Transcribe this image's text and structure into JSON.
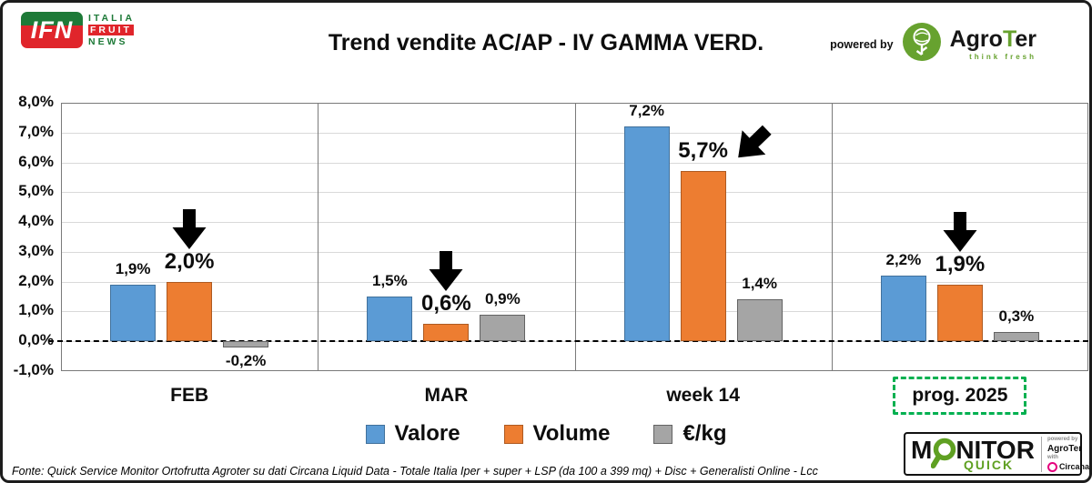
{
  "header": {
    "ifn": {
      "emblem": "IFN",
      "line1": "ITALIA",
      "line2": "FRUIT",
      "line3": "NEWS",
      "green": "#1e7a38",
      "red": "#e0252b"
    },
    "powered_by": "powered by",
    "agroter": {
      "pre": "Agro",
      "t": "T",
      "post": "er",
      "tagline": "think fresh",
      "green": "#67a22f"
    }
  },
  "chart_data": {
    "type": "bar",
    "title": "Trend vendite AC/AP - IV GAMMA VERD.",
    "categories": [
      "FEB",
      "MAR",
      "week 14",
      "prog. 2025"
    ],
    "series": [
      {
        "name": "Valore",
        "color": "#5b9bd5",
        "border": "#41719c",
        "emphasized": false,
        "values": [
          1.9,
          1.5,
          7.2,
          2.2
        ],
        "labels": [
          "1,9%",
          "1,5%",
          "7,2%",
          "2,2%"
        ]
      },
      {
        "name": "Volume",
        "color": "#ed7d31",
        "border": "#ae5a21",
        "emphasized": true,
        "values": [
          2.0,
          0.6,
          5.7,
          1.9
        ],
        "labels": [
          "2,0%",
          "0,6%",
          "5,7%",
          "1,9%"
        ]
      },
      {
        "name": "€/kg",
        "color": "#a5a5a5",
        "border": "#636363",
        "emphasized": false,
        "values": [
          -0.2,
          0.9,
          1.4,
          0.3
        ],
        "labels": [
          "-0,2%",
          "0,9%",
          "1,4%",
          "0,3%"
        ]
      }
    ],
    "ylim": [
      -1,
      8
    ],
    "ytick_step": 1,
    "yticks": [
      "8,0%",
      "7,0%",
      "6,0%",
      "5,0%",
      "4,0%",
      "3,0%",
      "2,0%",
      "1,0%",
      "0,0%",
      "-1,0%"
    ],
    "zero_line": "dashed",
    "grid": true,
    "legend_position": "bottom",
    "arrows": [
      "down",
      "down",
      "diagonal",
      "down"
    ],
    "highlight_category": "prog. 2025",
    "highlight_color": "#00b050"
  },
  "footer": {
    "source": "Fonte: Quick Service Monitor Ortofrutta Agroter su dati Circana Liquid Data - Totale Italia Iper + super + LSP (da 100 a 399 mq) + Disc + Generalisti Online - Lcc"
  },
  "monitor": {
    "m": "M",
    "rest": "NITOR",
    "quick": "QUICK",
    "powered_by": "powered by",
    "agroter": "AgroTer",
    "with_label": "with",
    "circana": "Circana.",
    "green": "#5fa022"
  }
}
